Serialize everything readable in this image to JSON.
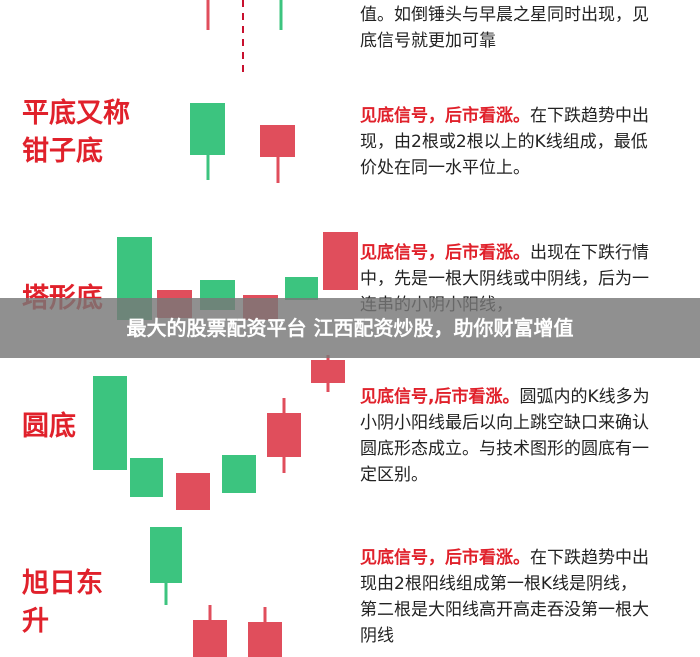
{
  "intro": {
    "text": "值。如倒锤头与早晨之星同时出现，见底信号就更加可靠"
  },
  "sections": [
    {
      "title": "平底又称钳子底",
      "lead": "见底信号，后市看涨。",
      "body": "在下跌趋势中出现，由2根或2根以上的K线组成，最低价处在同一水平位上。"
    },
    {
      "title": "塔形底",
      "lead": "见底信号，后市看涨。",
      "body": "出现在下跌行情中，先是一根大阴线或中阴线，后为一连串的小阴小阳线，"
    },
    {
      "title": "圆底",
      "lead": "见底信号,后市看涨。",
      "body": "圆弧内的K线多为小阴小阳线最后以向上跳空缺口来确认圆底形态成立。与技术图形的圆底有一定区别。"
    },
    {
      "title": "旭日东升",
      "lead": "见底信号，后市看涨。",
      "body": "在下跌趋势中出现由2根阳线组成第一根K线是阴线，第二根是大阳线高开高走吞没第一根大阴线"
    }
  ],
  "banner": {
    "text": "最大的股票配资平台 江西配资炒股，助你财富增值"
  }
}
